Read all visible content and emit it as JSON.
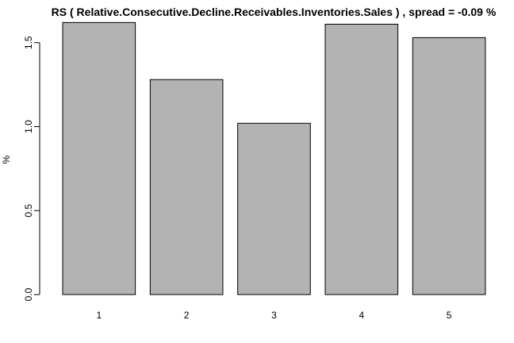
{
  "chart_data": {
    "type": "bar",
    "title": "RS ( Relative.Consecutive.Decline.Receivables.Inventories.Sales ) , spread = -0.09 %",
    "xlabel": "",
    "ylabel": "%",
    "categories": [
      "1",
      "2",
      "3",
      "4",
      "5"
    ],
    "values": [
      1.62,
      1.28,
      1.02,
      1.61,
      1.53
    ],
    "yticks": [
      "0.0",
      "0.5",
      "1.0",
      "1.5"
    ],
    "ylim": [
      0,
      1.62
    ],
    "bar_color": "#b3b3b3",
    "grid": false,
    "legend": "none"
  }
}
